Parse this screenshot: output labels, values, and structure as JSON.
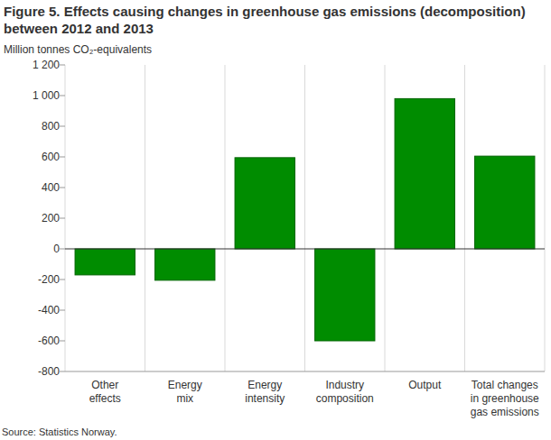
{
  "chart_data": {
    "type": "bar",
    "title": "Figure 5. Effects causing changes in greenhouse gas emissions (decomposition)\nbetween 2012 and 2013",
    "y_label": "Million tonnes CO₂-equivalents",
    "source": "Source: Statistics Norway.",
    "categories": [
      "Other\neffects",
      "Energy\nmix",
      "Energy\nintensity",
      "Industry\ncomposition",
      "Output",
      "Total changes\nin greenhouse\ngas emissions"
    ],
    "values": [
      -170,
      -205,
      595,
      -600,
      980,
      605
    ],
    "color": "#008c00",
    "ylim": [
      -800,
      1200
    ],
    "yticks": [
      -800,
      -600,
      -400,
      -200,
      0,
      200,
      400,
      600,
      800,
      {
        "value": 1000,
        "label": "1 000"
      },
      {
        "value": 1200,
        "label": "1 200"
      }
    ],
    "grid": true
  }
}
